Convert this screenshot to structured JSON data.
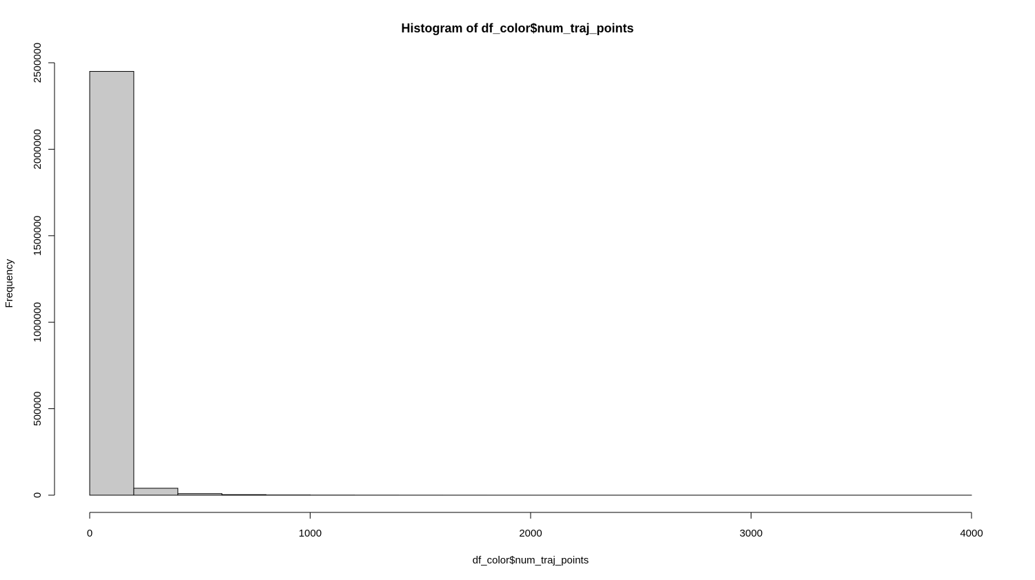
{
  "chart_data": {
    "type": "bar",
    "title": "Histogram of df_color$num_traj_points",
    "xlabel": "df_color$num_traj_points",
    "ylabel": "Frequency",
    "bins": [
      {
        "from": 0,
        "to": 200,
        "count": 2450000
      },
      {
        "from": 200,
        "to": 400,
        "count": 40000
      },
      {
        "from": 400,
        "to": 600,
        "count": 9000
      },
      {
        "from": 600,
        "to": 800,
        "count": 3000
      },
      {
        "from": 800,
        "to": 1000,
        "count": 1200
      },
      {
        "from": 1000,
        "to": 1200,
        "count": 500
      },
      {
        "from": 1200,
        "to": 1400,
        "count": 250
      },
      {
        "from": 1400,
        "to": 1600,
        "count": 120
      },
      {
        "from": 1600,
        "to": 1800,
        "count": 60
      },
      {
        "from": 1800,
        "to": 2000,
        "count": 30
      },
      {
        "from": 2000,
        "to": 2200,
        "count": 20
      },
      {
        "from": 2200,
        "to": 2400,
        "count": 10
      },
      {
        "from": 2400,
        "to": 2600,
        "count": 6
      },
      {
        "from": 2600,
        "to": 2800,
        "count": 4
      },
      {
        "from": 2800,
        "to": 3000,
        "count": 3
      },
      {
        "from": 3000,
        "to": 3200,
        "count": 2
      },
      {
        "from": 3200,
        "to": 3400,
        "count": 1
      },
      {
        "from": 3400,
        "to": 3600,
        "count": 1
      },
      {
        "from": 3600,
        "to": 3800,
        "count": 1
      },
      {
        "from": 3800,
        "to": 4000,
        "count": 1
      }
    ],
    "xlim": [
      0,
      4000
    ],
    "ylim": [
      0,
      2500000
    ],
    "xticks": [
      0,
      1000,
      2000,
      3000,
      4000
    ],
    "yticks": [
      0,
      500000,
      1000000,
      1500000,
      2000000,
      2500000
    ],
    "xtick_labels": [
      "0",
      "1000",
      "2000",
      "3000",
      "4000"
    ],
    "ytick_labels": [
      "0",
      "500000",
      "1000000",
      "1500000",
      "2000000",
      "2500000"
    ],
    "grid": false,
    "bar_color": "#c8c8c8",
    "edge_color": "#000000"
  }
}
